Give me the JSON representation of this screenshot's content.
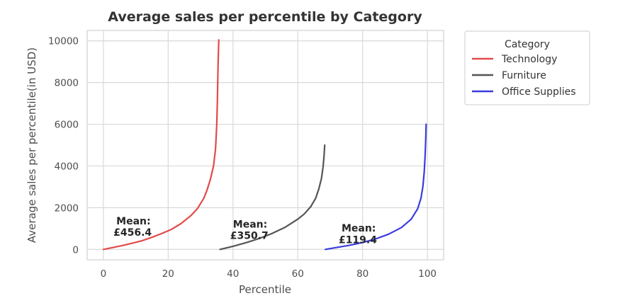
{
  "chart_data": {
    "type": "line",
    "title": "Average sales per percentile by Category",
    "xlabel": "Percentile",
    "ylabel": "Average sales per percentile(in USD)",
    "xlim": [
      -5,
      105
    ],
    "ylim": [
      -500,
      10500
    ],
    "xticks": [
      0,
      20,
      40,
      60,
      80,
      100
    ],
    "yticks": [
      0,
      2000,
      4000,
      6000,
      8000,
      10000
    ],
    "grid": true,
    "legend": {
      "title": "Category",
      "placement": "outside-right"
    },
    "series": [
      {
        "name": "Technology",
        "color": "#e34a4a",
        "x": [
          0,
          3,
          6,
          9,
          12,
          15,
          18,
          21,
          24,
          27,
          29,
          31,
          32,
          33,
          34,
          34.6,
          35,
          35.2,
          35.4,
          35.6
        ],
        "y": [
          0,
          90,
          190,
          300,
          420,
          580,
          760,
          960,
          1240,
          1620,
          1950,
          2450,
          2850,
          3350,
          4000,
          4800,
          6000,
          7200,
          8800,
          10050
        ]
      },
      {
        "name": "Furniture",
        "color": "#555555",
        "x": [
          36,
          40,
          44,
          48,
          52,
          56,
          60,
          62,
          64,
          65.5,
          66.5,
          67.3,
          67.8,
          68.1,
          68.3
        ],
        "y": [
          0,
          150,
          320,
          520,
          760,
          1050,
          1450,
          1700,
          2050,
          2450,
          2900,
          3400,
          3950,
          4500,
          5000
        ]
      },
      {
        "name": "Office Supplies",
        "color": "#3b3be0",
        "x": [
          68.5,
          72,
          76,
          80,
          84,
          88,
          92,
          95,
          97,
          98,
          98.6,
          99,
          99.3,
          99.5,
          99.6
        ],
        "y": [
          0,
          90,
          200,
          330,
          500,
          730,
          1050,
          1450,
          1950,
          2450,
          3000,
          3700,
          4500,
          5300,
          6000
        ]
      }
    ],
    "annotations": [
      {
        "line1": "Mean:",
        "line2": "£456.4",
        "x": 4,
        "y1": 1200,
        "y2": 650
      },
      {
        "line1": "Mean:",
        "line2": "£350.7",
        "x": 40,
        "y1": 1050,
        "y2": 500
      },
      {
        "line1": "Mean:",
        "line2": "£119.4",
        "x": 73.5,
        "y1": 850,
        "y2": 300
      }
    ]
  }
}
